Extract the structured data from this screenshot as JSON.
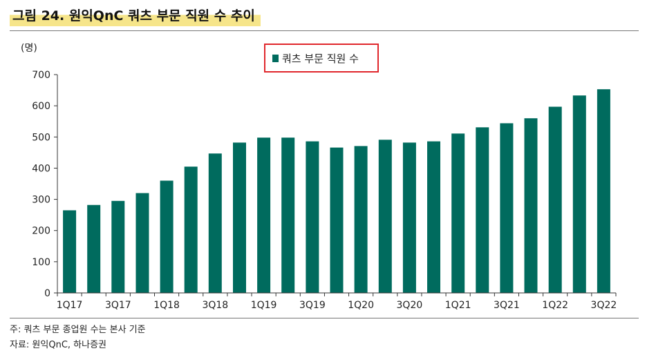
{
  "figure": {
    "title": "그림 24. 원익QnC 쿼츠 부문 직원 수 추이",
    "notes": [
      "주: 쿼츠 부문 종업원 수는 본사 기준",
      "자료: 원익QnC, 하나증권"
    ]
  },
  "colors": {
    "bar": "#006b5e",
    "legend_box": "#e0262b",
    "axis": "#333333",
    "title_highlight": "#f6e58a"
  },
  "chart_data": {
    "type": "bar",
    "title": "그림 24. 원익QnC 쿼츠 부문 직원 수 추이",
    "ylabel": "(명)",
    "xlabel": "",
    "ylim": [
      0,
      700
    ],
    "yticks": [
      0,
      100,
      200,
      300,
      400,
      500,
      600,
      700
    ],
    "grid": false,
    "legend_position": "top-center",
    "categories": [
      "1Q17",
      "2Q17",
      "3Q17",
      "4Q17",
      "1Q18",
      "2Q18",
      "3Q18",
      "4Q18",
      "1Q19",
      "2Q19",
      "3Q19",
      "4Q19",
      "1Q20",
      "2Q20",
      "3Q20",
      "4Q20",
      "1Q21",
      "2Q21",
      "3Q21",
      "4Q21",
      "1Q22",
      "2Q22",
      "3Q22"
    ],
    "x_tick_labels": [
      "1Q17",
      "",
      "3Q17",
      "",
      "1Q18",
      "",
      "3Q18",
      "",
      "1Q19",
      "",
      "3Q19",
      "",
      "1Q20",
      "",
      "3Q20",
      "",
      "1Q21",
      "",
      "3Q21",
      "",
      "1Q22",
      "",
      "3Q22"
    ],
    "series": [
      {
        "name": "쿼츠 부문 직원 수",
        "values": [
          265,
          282,
          295,
          320,
          360,
          405,
          447,
          482,
          498,
          498,
          486,
          466,
          471,
          491,
          482,
          486,
          511,
          531,
          544,
          560,
          597,
          633,
          653
        ]
      }
    ]
  }
}
